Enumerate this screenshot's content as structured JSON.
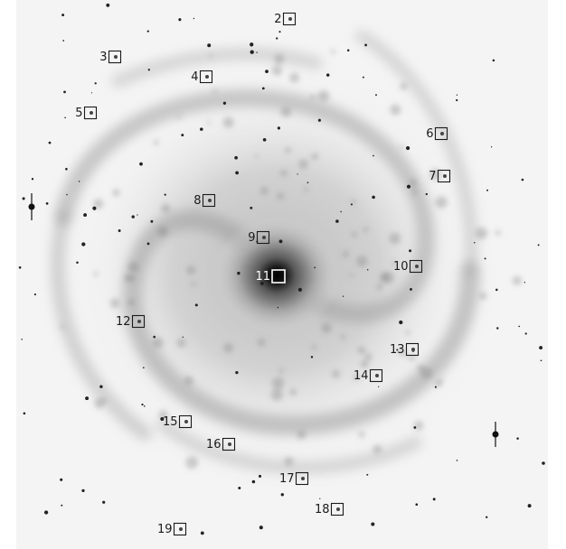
{
  "image": {
    "description_kind": "negative grayscale galaxy image with numbered region markers"
  },
  "markers": [
    {
      "label": "2"
    },
    {
      "label": "3"
    },
    {
      "label": "4"
    },
    {
      "label": "5"
    },
    {
      "label": "6"
    },
    {
      "label": "7"
    },
    {
      "label": "8"
    },
    {
      "label": "9"
    },
    {
      "label": "10"
    },
    {
      "label": "11"
    },
    {
      "label": "12"
    },
    {
      "label": "13"
    },
    {
      "label": "14"
    },
    {
      "label": "15"
    },
    {
      "label": "16"
    },
    {
      "label": "17"
    },
    {
      "label": "18"
    },
    {
      "label": "19"
    }
  ]
}
